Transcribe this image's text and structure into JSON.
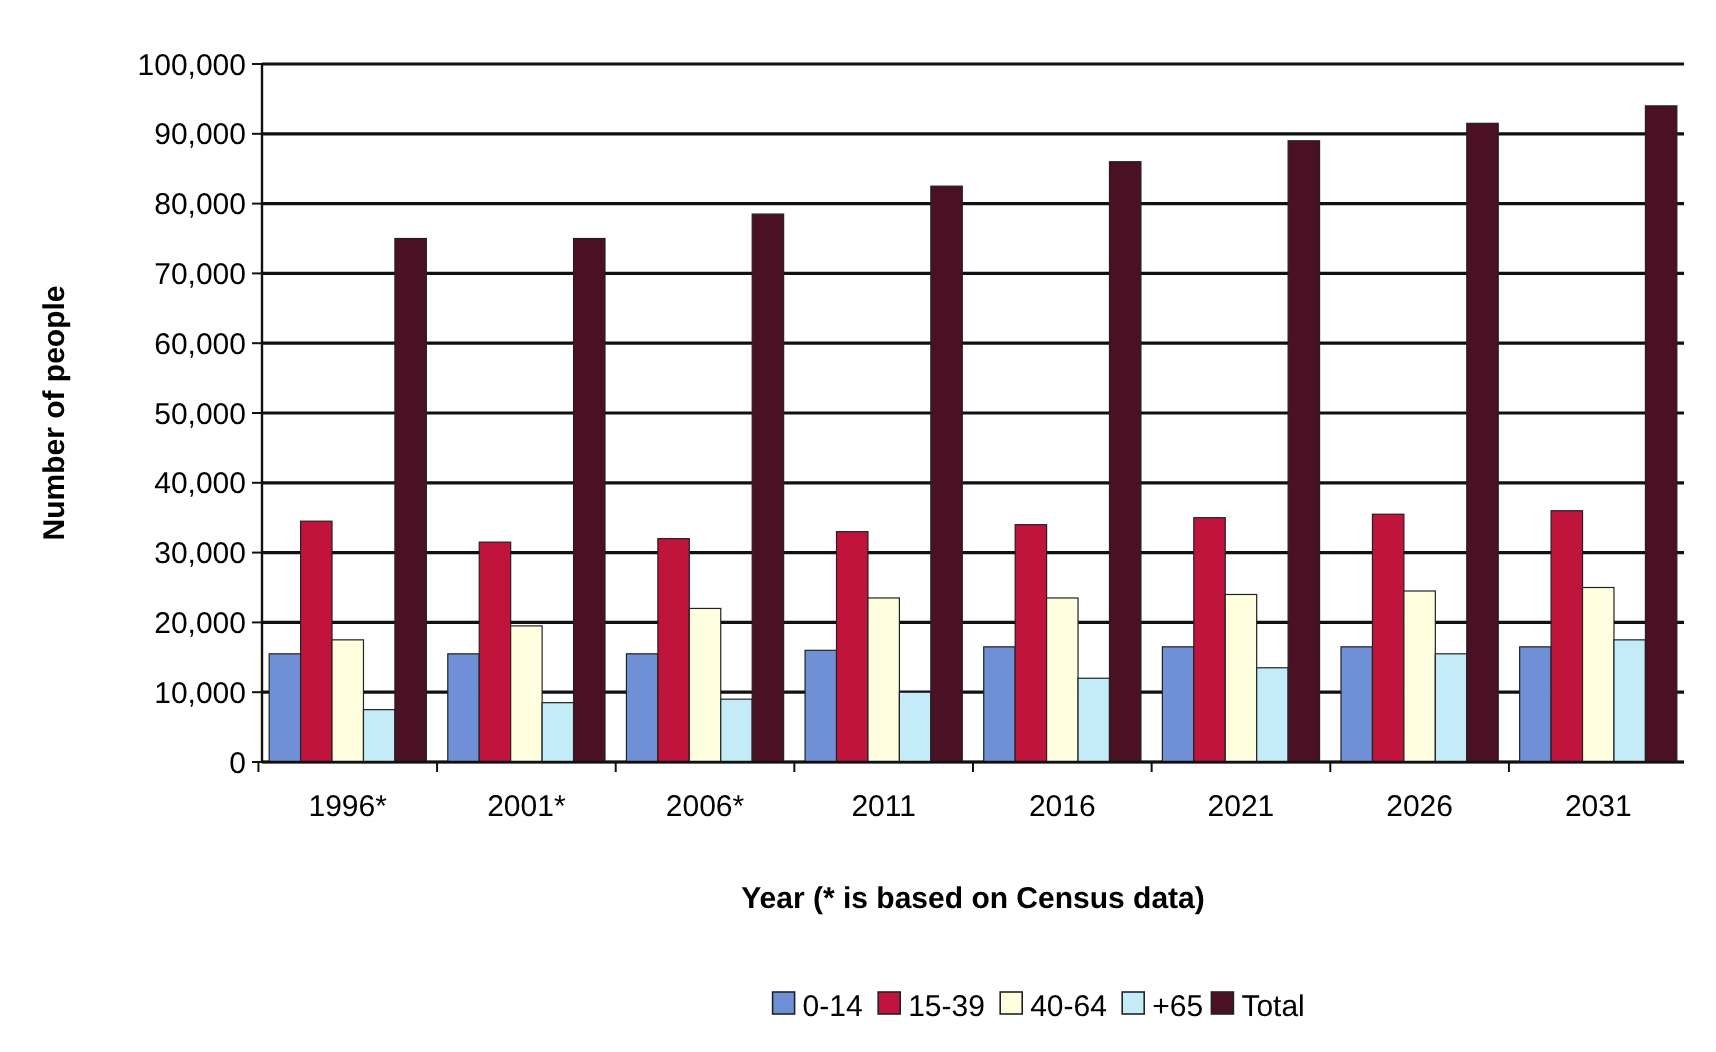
{
  "chart_data": {
    "type": "bar",
    "xlabel": "Year (* is based on Census data)",
    "ylabel": "Number of people",
    "categories": [
      "1996*",
      "2001*",
      "2006*",
      "2011",
      "2016",
      "2021",
      "2026",
      "2031"
    ],
    "series": [
      {
        "name": "0-14",
        "color": "#6f8fd6",
        "values": [
          15500,
          15500,
          15500,
          16000,
          16500,
          16500,
          16500,
          16500
        ]
      },
      {
        "name": "15-39",
        "color": "#c0143c",
        "values": [
          34500,
          31500,
          32000,
          33000,
          34000,
          35000,
          35500,
          36000
        ]
      },
      {
        "name": "40-64",
        "color": "#ffffe0",
        "values": [
          17500,
          19500,
          22000,
          23500,
          23500,
          24000,
          24500,
          25000
        ]
      },
      {
        "name": "+65",
        "color": "#c4ecf8",
        "values": [
          7500,
          8500,
          9000,
          10000,
          12000,
          13500,
          15500,
          17500
        ]
      },
      {
        "name": "Total",
        "color": "#4a1024",
        "values": [
          75000,
          75000,
          78500,
          82500,
          86000,
          89000,
          91500,
          94000
        ]
      }
    ],
    "ylim": [
      0,
      100000
    ],
    "yticks": [
      {
        "value": 0,
        "label": "0"
      },
      {
        "value": 10000,
        "label": "10,000"
      },
      {
        "value": 20000,
        "label": "20,000"
      },
      {
        "value": 30000,
        "label": "30,000"
      },
      {
        "value": 40000,
        "label": "40,000"
      },
      {
        "value": 50000,
        "label": "50,000"
      },
      {
        "value": 60000,
        "label": "60,000"
      },
      {
        "value": 70000,
        "label": "70,000"
      },
      {
        "value": 80000,
        "label": "80,000"
      },
      {
        "value": 90000,
        "label": "90,000"
      },
      {
        "value": 100000,
        "label": "100,000"
      }
    ],
    "grid": "y",
    "legend": "bottom"
  }
}
